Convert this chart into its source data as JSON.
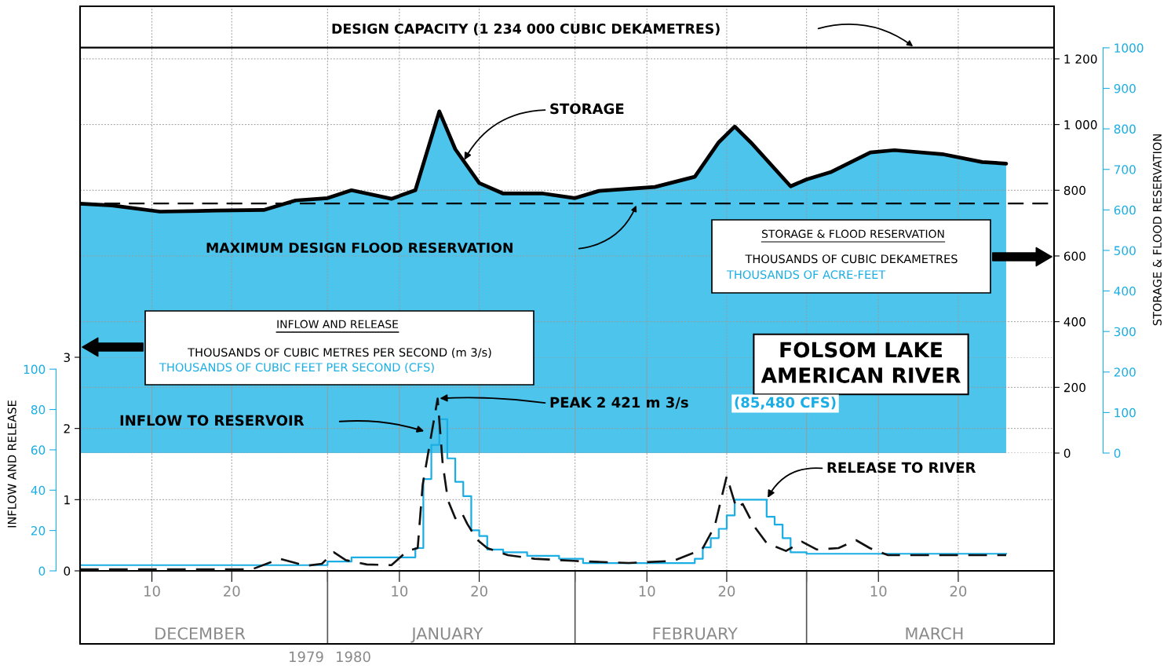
{
  "chart_data": [
    {
      "type": "area",
      "title": "FOLSOM LAKE\nAMERICAN RIVER",
      "y2label": "STORAGE & FLOOD RESERVATION",
      "x": [
        "1979-12-01",
        "1979-12-05",
        "1979-12-11",
        "1979-12-18",
        "1979-12-24",
        "1979-12-28",
        "1980-01-01",
        "1980-01-04",
        "1980-01-09",
        "1980-01-12",
        "1980-01-15",
        "1980-01-17",
        "1980-01-20",
        "1980-01-23",
        "1980-01-28",
        "1980-02-01",
        "1980-02-04",
        "1980-02-11",
        "1980-02-16",
        "1980-02-19",
        "1980-02-21",
        "1980-02-23",
        "1980-02-28",
        "1980-03-01",
        "1980-03-04",
        "1980-03-09",
        "1980-03-12",
        "1980-03-18",
        "1980-03-23",
        "1980-03-26"
      ],
      "series": [
        {
          "color": "#4cc4ec",
          "values": [
            759,
            754,
            735,
            738,
            740,
            769,
            776,
            800,
            774,
            800,
            1040,
            925,
            822,
            790,
            790,
            776,
            798,
            810,
            841,
            946,
            994,
            946,
            812,
            833,
            855,
            915,
            922,
            910,
            886,
            881
          ]
        }
      ],
      "xlim": [
        "1979-12-01",
        "1980-04-01"
      ],
      "xticks": [
        {
          "value": "1979-12-10",
          "label": null
        },
        {
          "value": "1979-12-20",
          "label": null
        },
        {
          "value": "1980-01-01",
          "label": null
        },
        {
          "value": "1980-01-10",
          "label": null
        },
        {
          "value": "1980-01-20",
          "label": null
        },
        {
          "value": "1980-02-01",
          "label": null
        },
        {
          "value": "1980-02-10",
          "label": null
        },
        {
          "value": "1980-02-20",
          "label": null
        },
        {
          "value": "1980-03-01",
          "label": null
        },
        {
          "value": "1980-03-10",
          "label": null
        },
        {
          "value": "1980-03-20",
          "label": null
        }
      ],
      "ylim": [
        0,
        1360
      ],
      "yticks": [
        0,
        200,
        400,
        600,
        800,
        {
          "value": 1000,
          "label": "1 000"
        },
        {
          "value": 1200,
          "label": "1 200"
        }
      ],
      "y2lim": [
        0,
        1102.5
      ],
      "y2ticks": [
        0,
        100,
        200,
        300,
        400,
        500,
        600,
        700,
        800,
        900,
        1000
      ],
      "ref_lines": [
        {
          "axis": "y",
          "value": 1234,
          "label": "DESIGN CAPACITY (1 234 000 CUBIC DEKAMETRES)",
          "color": "#000000",
          "line_style": "solid"
        },
        {
          "axis": "y",
          "value": 760,
          "label": "MAXIMUM DESIGN FLOOD RESERVATION",
          "color": "#000000",
          "line_style": "dashed"
        }
      ],
      "annotations": [
        "STORAGE & FLOOD RESERVATION",
        "THOUSANDS OF CUBIC DEKAMETRES",
        "THOUSANDS OF ACRE-FEET",
        {
          "text": "STORAGE",
          "x": "1980-01-18",
          "y": 886
        }
      ],
      "grid": true,
      "tick_labels": "y"
    },
    {
      "type": "line",
      "y2label": "INFLOW AND RELEASE",
      "series": [
        {
          "type": "line",
          "color": "#111111",
          "line_style": "dashed",
          "x": [
            "1979-12-01",
            "1979-12-22T12:00",
            "1979-12-26",
            "1979-12-28",
            "1979-12-29T07:00",
            "1979-12-31T07:00",
            "1980-01-01T19:00",
            "1980-01-03T07:00",
            "1980-01-05T22:00",
            "1980-01-09",
            "1980-01-11",
            "1980-01-12T07:00",
            "1980-01-12T22:00",
            "1980-01-14T19:00",
            "1980-01-15T10:00",
            "1980-01-16T02:00",
            "1980-01-17",
            "1980-01-17T19:00",
            "1980-01-18T12:00",
            "1980-01-19T17:00",
            "1980-01-21",
            "1980-01-23T14:00",
            "1980-01-26T22:00",
            "1980-01-31T19:00",
            "1980-02-07T17:00",
            "1980-02-13T07:00",
            "1980-02-16T22:00",
            "1980-02-18T12:00",
            "1980-02-20",
            "1980-02-21T05:00",
            "1980-02-22",
            "1980-02-23T10:00",
            "1980-02-25",
            "1980-02-27T10:00",
            "1980-02-29T10:00",
            "1980-03-02T07:00",
            "1980-03-05",
            "1980-03-07T05:00",
            "1980-03-08T22:00",
            "1980-03-11T05:00",
            "1980-03-26"
          ],
          "values": [
            0.02,
            0.02,
            0.17,
            0.11,
            0.07,
            0.1,
            0.26,
            0.15,
            0.09,
            0.08,
            0.28,
            0.32,
            1.21,
            2.421,
            1.51,
            0.99,
            0.74,
            0.82,
            0.66,
            0.44,
            0.32,
            0.22,
            0.17,
            0.14,
            0.11,
            0.14,
            0.3,
            0.63,
            1.33,
            0.88,
            0.94,
            0.63,
            0.39,
            0.28,
            0.41,
            0.3,
            0.32,
            0.43,
            0.32,
            0.22,
            0.22
          ]
        },
        {
          "type": "step",
          "color": "#1aaee5",
          "x": [
            "1979-12-01",
            "1980-01-01",
            "1980-01-04",
            "1980-01-12",
            "1980-01-13",
            "1980-01-14",
            "1980-01-15",
            "1980-01-16",
            "1980-01-17",
            "1980-01-18",
            "1980-01-19",
            "1980-01-20",
            "1980-01-21",
            "1980-01-23",
            "1980-01-26",
            "1980-01-30",
            "1980-02-02",
            "1980-02-16",
            "1980-02-17",
            "1980-02-18",
            "1980-02-19",
            "1980-02-20",
            "1980-02-21",
            "1980-02-25",
            "1980-02-26",
            "1980-02-27",
            "1980-02-28",
            "1980-03-01",
            "1980-03-26"
          ],
          "values": [
            0.08,
            0.13,
            0.19,
            0.32,
            1.29,
            1.77,
            2.13,
            1.58,
            1.25,
            1.05,
            0.57,
            0.49,
            0.3,
            0.26,
            0.21,
            0.17,
            0.11,
            0.17,
            0.33,
            0.46,
            0.59,
            0.78,
            1.0,
            0.76,
            0.65,
            0.46,
            0.26,
            0.24,
            0.24
          ]
        }
      ],
      "xlim": [
        "1979-12-01",
        "1980-04-01"
      ],
      "xticks": [
        {
          "value": "1979-12-10",
          "label": "10"
        },
        {
          "value": "1979-12-20",
          "label": "20"
        },
        {
          "value": "1980-01-01",
          "label": null
        },
        {
          "value": "1980-01-10",
          "label": "10"
        },
        {
          "value": "1980-01-20",
          "label": "20"
        },
        {
          "value": "1980-02-01",
          "label": null
        },
        {
          "value": "1980-02-10",
          "label": "10"
        },
        {
          "value": "1980-02-20",
          "label": "20"
        },
        {
          "value": "1980-03-01",
          "label": null
        },
        {
          "value": "1980-03-10",
          "label": "10"
        },
        {
          "value": "1980-03-20",
          "label": "20"
        }
      ],
      "x2lim": [
        "1979-12-01",
        "1980-04-01"
      ],
      "x2ticks": [
        {
          "value": "1979-12-16",
          "label": "DECEMBER"
        },
        {
          "value": "1980-01-16",
          "label": "JANUARY"
        },
        {
          "value": "1980-02-16",
          "label": "FEBRUARY"
        },
        {
          "value": "1980-03-17",
          "label": "MARCH"
        }
      ],
      "ylim": [
        0,
        3
      ],
      "yticks": [
        0,
        1,
        2,
        3
      ],
      "y2lim": [
        0,
        105.9
      ],
      "y2ticks": [
        0,
        20,
        40,
        60,
        80,
        100
      ],
      "annotations": [
        "INFLOW AND RELEASE",
        "THOUSANDS OF CUBIC METRES PER SECOND (m 3/s)",
        "THOUSANDS OF CUBIC FEET PER SECOND (CFS)",
        "1979",
        "1980",
        "INFLOW TO RESERVOIR",
        {
          "text": "PEAK 2 421 m 3/s",
          "x": "1980-01-14T19:00",
          "y": 2.421
        },
        "(85,480 CFS)",
        {
          "text": "RELEASE TO RIVER",
          "x": "1980-02-25",
          "y": 1.0
        }
      ],
      "grid": true
    }
  ]
}
